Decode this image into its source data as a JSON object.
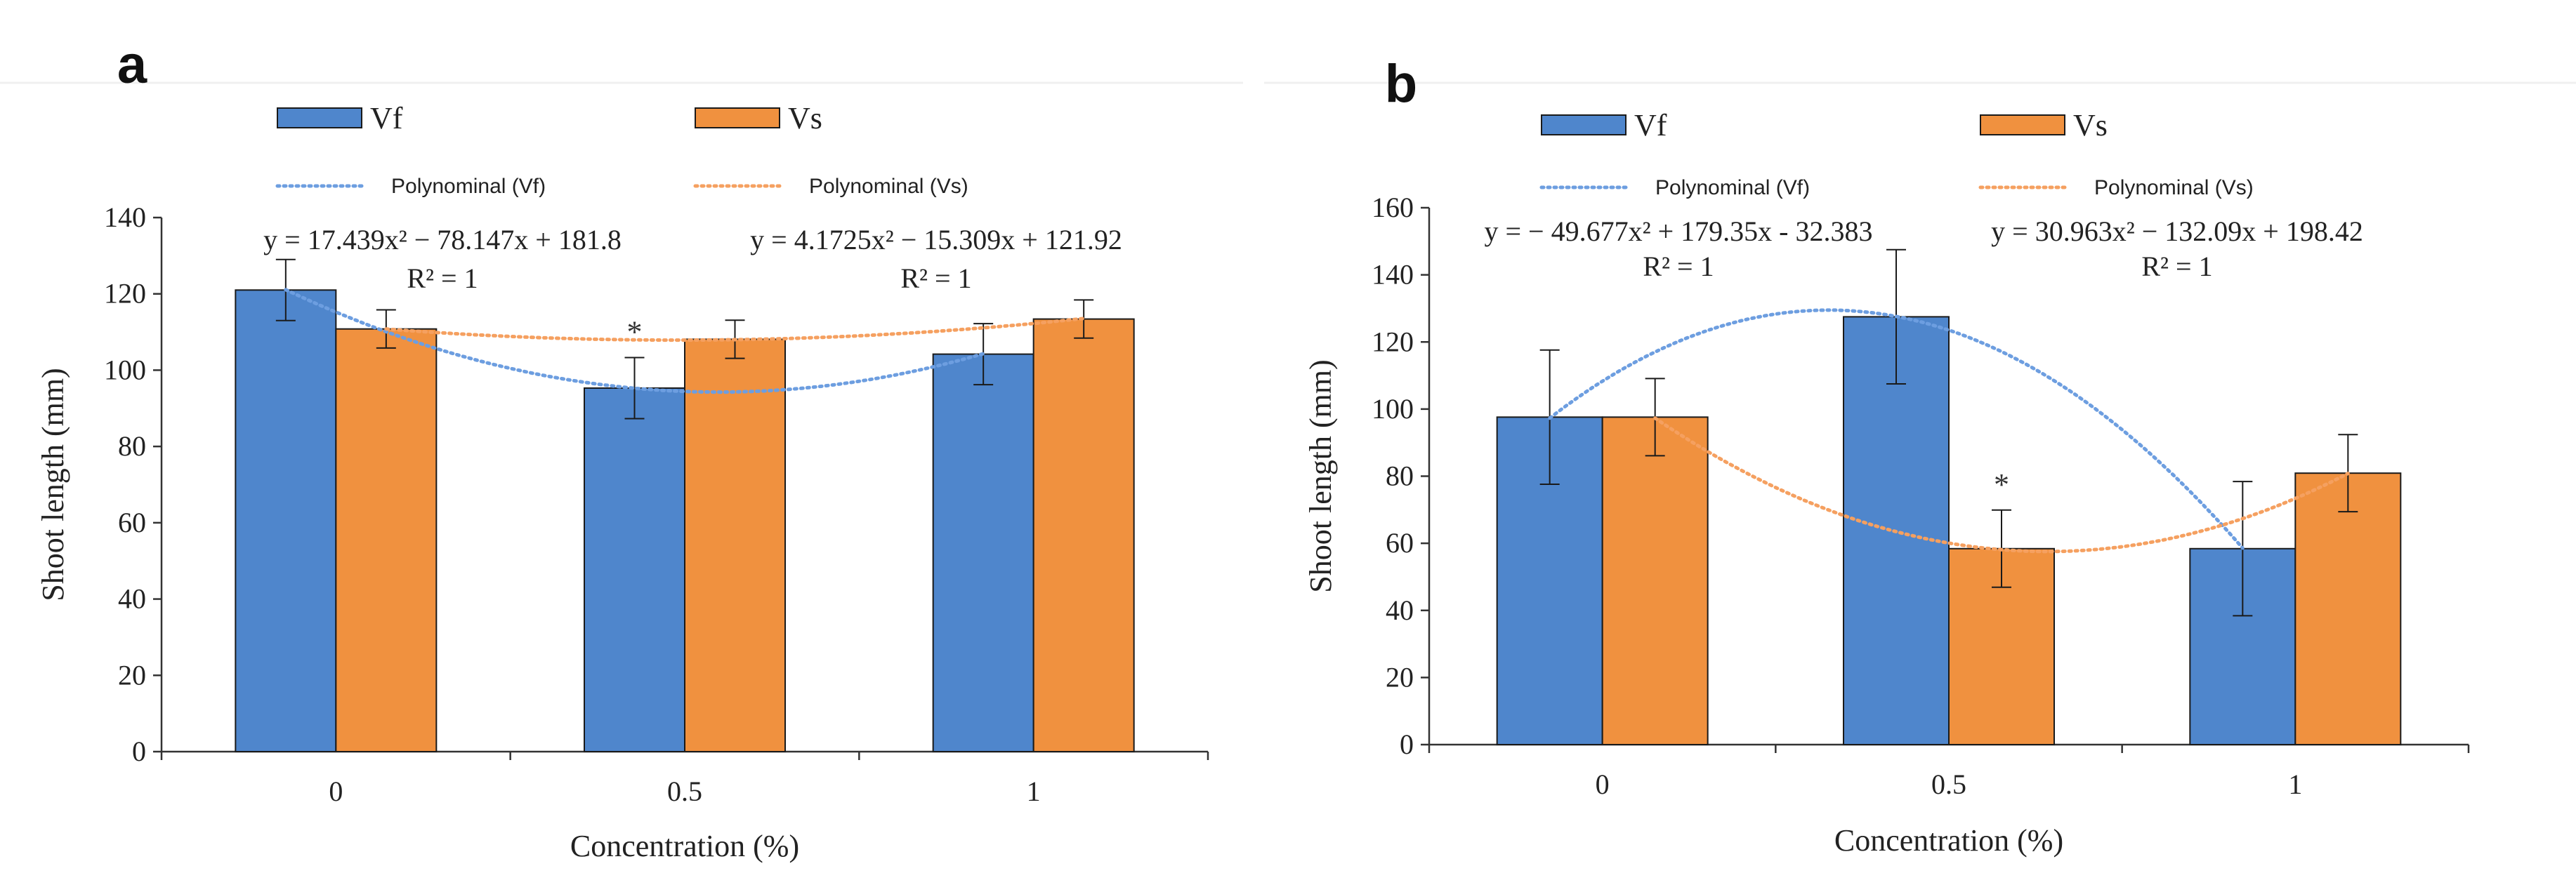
{
  "colors": {
    "vf": "#4f86cc",
    "vs": "#f0913f",
    "vf_trend": "#6d9ee0",
    "vs_trend": "#f5a060",
    "axis": "#333333"
  },
  "chart_data": [
    {
      "panel": "a",
      "type": "bar",
      "categories": [
        "0",
        "0.5",
        "1"
      ],
      "xlabel": "Concentration (%)",
      "ylabel": "Shoot length (mm)",
      "ylim": [
        0,
        140
      ],
      "yticks": [
        0,
        20,
        40,
        60,
        80,
        100,
        120,
        140
      ],
      "series": [
        {
          "name": "Vf",
          "values": [
            121,
            95.3,
            104.2
          ],
          "errors": [
            8,
            8,
            8
          ]
        },
        {
          "name": "Vs",
          "values": [
            110.8,
            108.1,
            113.4
          ],
          "errors": [
            5,
            5,
            5
          ]
        }
      ],
      "trendlines": [
        {
          "name": "Polynominal (Vf)",
          "coef": [
            17.439,
            -78.147,
            181.8
          ],
          "equation": "y = 17.439x² − 78.147x + 181.8",
          "r2": "R² = 1"
        },
        {
          "name": "Polynominal (Vs)",
          "coef": [
            4.1725,
            -15.309,
            121.92
          ],
          "equation": "y = 4.1725x² −  15.309x + 121.92",
          "r2": "R² = 1"
        }
      ],
      "annotations": [
        {
          "text": "*",
          "category": "0.5",
          "series": "Vf"
        }
      ]
    },
    {
      "panel": "b",
      "type": "bar",
      "categories": [
        "0",
        "0.5",
        "1"
      ],
      "xlabel": "Concentration (%)",
      "ylabel": "Shoot length (mm)",
      "ylim": [
        0,
        160
      ],
      "yticks": [
        0,
        20,
        40,
        60,
        80,
        100,
        120,
        140,
        160
      ],
      "series": [
        {
          "name": "Vf",
          "values": [
            97.6,
            127.5,
            58.4
          ],
          "errors": [
            20,
            20,
            20
          ]
        },
        {
          "name": "Vs",
          "values": [
            97.6,
            58.4,
            80.9
          ],
          "errors": [
            11.5,
            11.5,
            11.5
          ]
        }
      ],
      "trendlines": [
        {
          "name": "Polynominal (Vf)",
          "coef": [
            -49.677,
            179.35,
            -32.383
          ],
          "equation": "y = − 49.677x² + 179.35x - 32.383",
          "r2": "R² = 1"
        },
        {
          "name": "Polynominal (Vs)",
          "coef": [
            30.963,
            -132.09,
            198.42
          ],
          "equation": "y = 30.963x² − 132.09x + 198.42",
          "r2": "R² = 1"
        }
      ],
      "annotations": [
        {
          "text": "*",
          "category": "0.5",
          "series": "Vs"
        }
      ]
    }
  ]
}
